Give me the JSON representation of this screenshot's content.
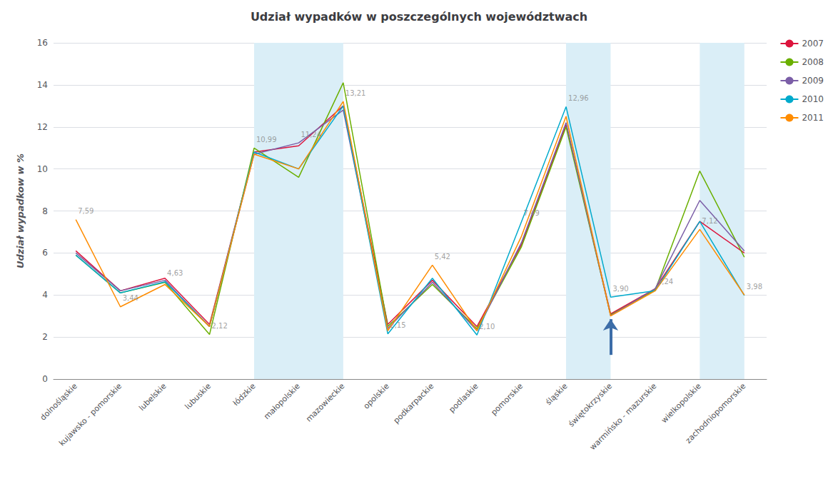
{
  "chart_data": {
    "type": "line",
    "title": "Udział wypadków w poszczególnych województwach",
    "ylabel": "Udział wypadkow w %",
    "categories": [
      "dolnośląskie",
      "kujawsko - pomorskie",
      "lubelskie",
      "lubuskie",
      "łódzkie",
      "małopolskie",
      "mazowieckie",
      "opolskie",
      "podkarpackie",
      "podlaskie",
      "pomorskie",
      "śląskie",
      "świętokrzyskie",
      "warmińsko - mazurskie",
      "wielkopolskie",
      "zachodniopomorskie"
    ],
    "series": [
      {
        "name": "2007",
        "color": "#DC143C",
        "values": [
          6.1,
          4.2,
          4.8,
          2.6,
          10.8,
          11.1,
          13.0,
          2.6,
          4.7,
          2.5,
          6.4,
          12.1,
          3.1,
          4.3,
          7.5,
          6.0
        ]
      },
      {
        "name": "2008",
        "color": "#6AAF00",
        "values": [
          5.9,
          4.1,
          4.6,
          2.12,
          10.99,
          9.6,
          14.1,
          2.5,
          4.5,
          2.4,
          6.3,
          12.0,
          3.05,
          4.24,
          9.9,
          5.8
        ]
      },
      {
        "name": "2009",
        "color": "#7B5EA7",
        "values": [
          6.0,
          4.2,
          4.7,
          2.5,
          10.7,
          11.24,
          12.8,
          2.4,
          4.6,
          2.3,
          6.5,
          12.2,
          3.02,
          4.3,
          8.5,
          6.1
        ]
      },
      {
        "name": "2010",
        "color": "#00AACC",
        "values": [
          5.9,
          4.1,
          4.63,
          2.5,
          10.8,
          10.0,
          13.0,
          2.15,
          4.8,
          2.1,
          7.49,
          12.96,
          3.9,
          4.2,
          7.5,
          3.98
        ]
      },
      {
        "name": "2011",
        "color": "#FF8C00",
        "values": [
          7.59,
          3.44,
          4.5,
          2.5,
          10.7,
          10.0,
          13.21,
          2.3,
          5.42,
          2.3,
          6.8,
          12.5,
          3.0,
          4.2,
          7.12,
          4.0
        ]
      }
    ],
    "bands": {
      "color": "#DAEEF7",
      "ranges": [
        [
          "łódzkie",
          "mazowieckie"
        ],
        [
          "śląskie",
          "świętokrzyskie"
        ],
        [
          "wielkopolskie",
          "zachodniopomorskie"
        ]
      ]
    },
    "annotations": [
      {
        "x": "dolnośląskie",
        "y": 7.59,
        "text": "7,59"
      },
      {
        "x": "kujawsko - pomorskie",
        "y": 3.44,
        "text": "3,44"
      },
      {
        "x": "lubelskie",
        "y": 4.63,
        "text": "4,63"
      },
      {
        "x": "lubuskie",
        "y": 2.12,
        "text": "2,12"
      },
      {
        "x": "łódzkie",
        "y": 10.99,
        "text": "10,99"
      },
      {
        "x": "małopolskie",
        "y": 11.24,
        "text": "11,24"
      },
      {
        "x": "mazowieckie",
        "y": 13.21,
        "text": "13,21"
      },
      {
        "x": "opolskie",
        "y": 2.15,
        "text": "2,15"
      },
      {
        "x": "podkarpackie",
        "y": 5.42,
        "text": "5,42"
      },
      {
        "x": "podlaskie",
        "y": 2.1,
        "text": "2,10"
      },
      {
        "x": "pomorskie",
        "y": 7.49,
        "text": "7,49"
      },
      {
        "x": "śląskie",
        "y": 12.96,
        "text": "12,96"
      },
      {
        "x": "świętokrzyskie",
        "y": 3.9,
        "text": "3,90"
      },
      {
        "x": "warmińsko - mazurskie",
        "y": 4.24,
        "text": "4,24"
      },
      {
        "x": "wielkopolskie",
        "y": 7.12,
        "text": "7,12"
      },
      {
        "x": "zachodniopomorskie",
        "y": 3.98,
        "text": "3,98"
      }
    ],
    "arrow": {
      "x": "świętokrzyskie",
      "from": 1.15,
      "to": 2.85,
      "color": "#3C6DA8"
    },
    "ylim": [
      0,
      16
    ],
    "yticks": [
      0,
      2,
      4,
      6,
      8,
      10,
      12,
      14,
      16
    ],
    "grid": true,
    "legend": "right"
  }
}
